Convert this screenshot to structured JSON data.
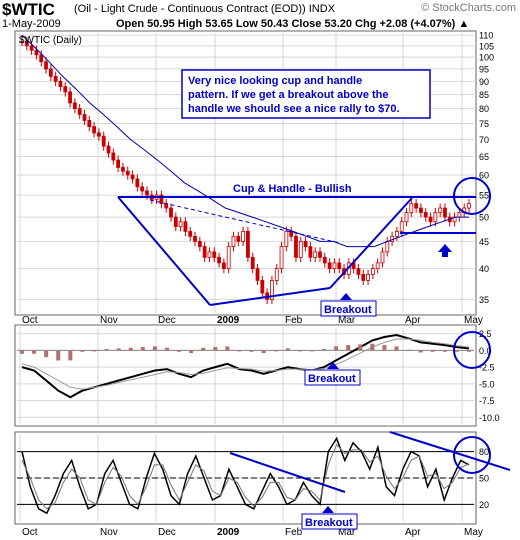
{
  "header": {
    "symbol": "$WTIC",
    "name": "(Oil - Light Crude - Continuous Contract (EOD))  INDX",
    "watermark": "© StockCharts.com",
    "date": "1-May-2009",
    "ohlc": "Open 50.95  High 53.65  Low 50.43  Close 53.20  Chg +2.08 (+4.07%) ▲",
    "legend": "$WTIC (Daily)"
  },
  "colors": {
    "price": "#cc0000",
    "ma": "#0000aa",
    "annotation": "#0000cc",
    "histogram": "#b07070",
    "macd": "#000000",
    "signal": "#999999",
    "grid": "#d6d6d6"
  },
  "annotations": {
    "note": [
      "Very nice looking cup and handle",
      "pattern. If we get a breakout above the",
      "handle we should see a nice rally to $70."
    ],
    "pattern": "Cup & Handle - Bullish",
    "breakout1": "Breakout",
    "breakout2": "Breakout",
    "breakout3": "Breakout"
  },
  "chart_data": [
    {
      "type": "line",
      "panel": "price",
      "title": "$WTIC (Daily)",
      "x_axis_labels": [
        "Oct",
        "Nov",
        "Dec",
        "2009",
        "Feb",
        "Mar",
        "Apr",
        "May"
      ],
      "y_ticks": [
        35,
        40,
        45,
        50,
        55,
        60,
        65,
        70,
        75,
        80,
        85,
        90,
        95,
        100,
        105,
        110
      ],
      "ylim": [
        33,
        111
      ],
      "scale": "log",
      "series": [
        {
          "name": "Price (candlesticks)",
          "values": [
            107,
            105,
            103,
            101,
            98,
            95,
            92,
            90,
            88,
            86,
            82,
            80,
            78,
            76,
            74,
            72,
            71,
            68,
            66,
            64,
            62,
            61,
            60,
            59,
            57,
            56,
            55,
            54,
            55,
            53,
            52,
            50,
            48,
            49,
            47,
            46,
            45,
            44,
            42,
            43,
            42,
            41,
            40,
            44,
            46,
            45,
            47,
            42,
            40,
            38,
            36,
            35,
            38,
            40,
            44,
            47,
            46,
            42,
            45,
            44,
            42,
            43,
            42,
            41,
            40,
            41,
            40,
            39,
            41,
            40,
            39,
            38,
            39,
            40,
            41,
            43,
            45,
            46,
            47,
            49,
            51,
            53,
            52,
            51,
            50,
            49,
            51,
            52,
            50,
            49,
            50,
            51,
            52,
            53
          ]
        },
        {
          "name": "Moving average",
          "values": [
            110,
            104,
            98,
            92,
            87,
            82,
            78,
            74,
            70,
            67,
            64,
            61,
            58,
            56,
            54,
            52,
            51,
            50,
            49,
            48,
            47,
            46,
            45,
            45,
            44,
            44,
            44,
            45,
            46,
            47,
            48,
            49,
            50,
            50
          ]
        }
      ]
    },
    {
      "type": "line",
      "panel": "macd",
      "y_ticks": [
        2.5,
        0.0,
        -2.5,
        -5.0,
        -7.5,
        -10.0
      ],
      "ylim": [
        -11,
        3.5
      ],
      "series": [
        {
          "name": "MACD",
          "values": [
            -2.5,
            -3.0,
            -4.5,
            -6.0,
            -7.0,
            -6.0,
            -5.5,
            -5.0,
            -4.5,
            -4.0,
            -3.5,
            -3.0,
            -2.8,
            -3.5,
            -4.0,
            -3.0,
            -2.5,
            -2.0,
            -2.8,
            -3.0,
            -3.5,
            -3.0,
            -2.5,
            -2.8,
            -3.0,
            -2.5,
            -1.5,
            -0.5,
            0.5,
            1.5,
            2.0,
            2.3,
            1.8,
            1.2,
            1.0,
            0.8,
            0.5,
            0.3
          ]
        },
        {
          "name": "Signal",
          "values": [
            -2.0,
            -2.5,
            -3.5,
            -4.5,
            -5.5,
            -5.8,
            -5.5,
            -5.2,
            -4.8,
            -4.4,
            -4.0,
            -3.6,
            -3.2,
            -3.3,
            -3.6,
            -3.4,
            -3.0,
            -2.6,
            -2.7,
            -2.8,
            -3.1,
            -3.0,
            -2.8,
            -2.8,
            -2.9,
            -2.7,
            -2.1,
            -1.3,
            -0.4,
            0.5,
            1.2,
            1.7,
            1.7,
            1.5,
            1.2,
            1.0,
            0.7,
            0.5
          ]
        },
        {
          "name": "Histogram",
          "values": [
            -0.5,
            -0.5,
            -1.0,
            -1.5,
            -1.5,
            -0.2,
            0.0,
            0.2,
            0.3,
            0.4,
            0.5,
            0.6,
            0.4,
            -0.2,
            -0.4,
            0.4,
            0.5,
            0.6,
            -0.1,
            -0.2,
            -0.4,
            0.0,
            0.3,
            0.0,
            -0.1,
            0.2,
            0.6,
            0.8,
            0.9,
            1.0,
            0.8,
            0.6,
            0.1,
            -0.3,
            -0.2,
            -0.2,
            -0.2,
            -0.2
          ]
        }
      ]
    },
    {
      "type": "line",
      "panel": "stochastic",
      "y_ticks": [
        80,
        50,
        20
      ],
      "ylim": [
        0,
        100
      ],
      "series": [
        {
          "name": "%K",
          "values": [
            80,
            40,
            15,
            10,
            30,
            55,
            70,
            40,
            15,
            20,
            55,
            70,
            45,
            20,
            15,
            50,
            78,
            60,
            30,
            20,
            55,
            75,
            50,
            25,
            30,
            60,
            40,
            20,
            15,
            35,
            55,
            40,
            20,
            25,
            45,
            30,
            20,
            80,
            95,
            70,
            90,
            80,
            60,
            85,
            40,
            30,
            60,
            80,
            75,
            40,
            60,
            25,
            50,
            70,
            65
          ]
        },
        {
          "name": "%D",
          "values": [
            70,
            50,
            25,
            15,
            22,
            45,
            60,
            50,
            25,
            20,
            45,
            62,
            52,
            30,
            20,
            40,
            65,
            65,
            42,
            25,
            45,
            65,
            58,
            35,
            30,
            50,
            45,
            28,
            18,
            28,
            45,
            45,
            28,
            25,
            38,
            35,
            25,
            65,
            88,
            78,
            82,
            82,
            68,
            75,
            52,
            38,
            50,
            70,
            75,
            52,
            55,
            38,
            45,
            62,
            66
          ]
        }
      ]
    }
  ]
}
